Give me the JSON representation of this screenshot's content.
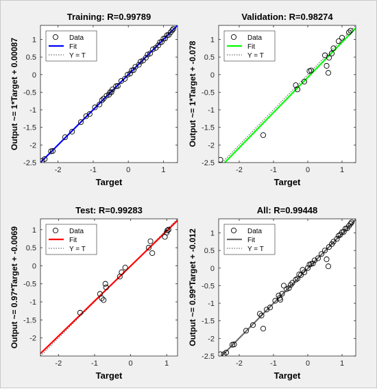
{
  "chart_data": [
    {
      "type": "scatter",
      "title": "Training: R=0.99789",
      "xlabel": "Target",
      "ylabel": "Output ~= 1*Target + 0.00087",
      "xlim": [
        -2.5,
        1.4
      ],
      "ylim": [
        -2.5,
        1.4
      ],
      "xticks": [
        -2,
        -1,
        0,
        1
      ],
      "yticks": [
        -2.5,
        -2,
        -1.5,
        -1,
        -0.5,
        0,
        0.5,
        1
      ],
      "ytick_labels": [
        "-2.5",
        "-2",
        "-1.5",
        "-1",
        "-0.5",
        "0",
        "0.5",
        "1"
      ],
      "xtick_labels": [
        "-2",
        "-1",
        "0",
        "1"
      ],
      "fit_color": "#0000ff",
      "fit": {
        "slope": 1.0,
        "intercept": 0.00087
      },
      "legend": [
        "Data",
        "Fit",
        "Y = T"
      ],
      "legend_position": "top-left",
      "series": [
        {
          "name": "Data",
          "x": [
            -2.45,
            -2.38,
            -2.2,
            -2.15,
            -1.8,
            -1.6,
            -1.35,
            -1.2,
            -1.1,
            -0.95,
            -0.82,
            -0.75,
            -0.7,
            -0.62,
            -0.55,
            -0.52,
            -0.48,
            -0.45,
            -0.35,
            -0.3,
            -0.2,
            -0.1,
            -0.02,
            0.05,
            0.1,
            0.15,
            0.2,
            0.3,
            0.35,
            0.42,
            0.5,
            0.55,
            0.62,
            0.7,
            0.78,
            0.85,
            0.9,
            0.95,
            1.0,
            1.05,
            1.1,
            1.15,
            1.2,
            1.25,
            1.28
          ],
          "y": [
            -2.45,
            -2.4,
            -2.18,
            -2.17,
            -1.78,
            -1.62,
            -1.35,
            -1.18,
            -1.12,
            -0.93,
            -0.85,
            -0.73,
            -0.68,
            -0.6,
            -0.57,
            -0.5,
            -0.5,
            -0.42,
            -0.33,
            -0.32,
            -0.18,
            -0.12,
            0.0,
            0.03,
            0.12,
            0.13,
            0.22,
            0.28,
            0.37,
            0.4,
            0.48,
            0.57,
            0.6,
            0.72,
            0.76,
            0.83,
            0.92,
            0.93,
            1.02,
            1.03,
            1.12,
            1.13,
            1.2,
            1.26,
            1.3
          ]
        }
      ]
    },
    {
      "type": "scatter",
      "title": "Validation: R=0.98274",
      "xlabel": "Target",
      "ylabel": "Output ~= 1*Target + -0.078",
      "xlim": [
        -2.6,
        1.4
      ],
      "ylim": [
        -2.5,
        1.4
      ],
      "xticks": [
        -2,
        -1,
        0,
        1
      ],
      "yticks": [
        -2.5,
        -2,
        -1.5,
        -1,
        -0.5,
        0,
        0.5,
        1
      ],
      "ytick_labels": [
        "-2.5",
        "-2",
        "-1.5",
        "-1",
        "-0.5",
        "0",
        "0.5",
        "1"
      ],
      "xtick_labels": [
        "-2",
        "-1",
        "0",
        "1"
      ],
      "fit_color": "#00ff00",
      "fit": {
        "slope": 1.0,
        "intercept": -0.078
      },
      "legend": [
        "Data",
        "Fit",
        "Y = T"
      ],
      "legend_position": "top-left",
      "series": [
        {
          "name": "Data",
          "x": [
            -2.55,
            -1.3,
            -0.35,
            -0.3,
            -0.1,
            0.05,
            0.1,
            0.5,
            0.55,
            0.6,
            0.62,
            0.7,
            0.75,
            0.9,
            1.0,
            1.2,
            1.25
          ],
          "y": [
            -2.42,
            -1.72,
            -0.3,
            -0.42,
            -0.2,
            0.1,
            0.12,
            0.55,
            0.25,
            0.05,
            0.48,
            0.6,
            0.75,
            0.95,
            1.05,
            1.2,
            1.25
          ]
        }
      ]
    },
    {
      "type": "scatter",
      "title": "Test: R=0.99283",
      "xlabel": "Target",
      "ylabel": "Output ~= 0.97*Target + -0.0069",
      "xlim": [
        -2.5,
        1.3
      ],
      "ylim": [
        -2.5,
        1.3
      ],
      "xticks": [
        -2,
        -1,
        0,
        1
      ],
      "yticks": [
        -2,
        -1.5,
        -1,
        -0.5,
        0,
        0.5,
        1
      ],
      "ytick_labels": [
        "-2",
        "-1.5",
        "-1",
        "-0.5",
        "0",
        "0.5",
        "1"
      ],
      "xtick_labels": [
        "-2",
        "-1",
        "0",
        "1"
      ],
      "fit_color": "#ff0000",
      "fit": {
        "slope": 0.97,
        "intercept": -0.0069
      },
      "legend": [
        "Data",
        "Fit",
        "Y = T"
      ],
      "legend_position": "top-left",
      "series": [
        {
          "name": "Data",
          "x": [
            -1.4,
            -0.85,
            -0.8,
            -0.75,
            -0.7,
            -0.68,
            -0.3,
            -0.25,
            -0.15,
            0.5,
            0.55,
            0.6,
            0.95,
            1.0,
            1.02,
            1.05
          ],
          "y": [
            -1.3,
            -0.78,
            -0.9,
            -0.95,
            -0.5,
            -0.6,
            -0.3,
            -0.18,
            -0.05,
            0.5,
            0.68,
            0.35,
            0.8,
            0.92,
            0.98,
            1.0
          ]
        }
      ]
    },
    {
      "type": "scatter",
      "title": "All: R=0.99448",
      "xlabel": "Target",
      "ylabel": "Output ~= 0.99*Target + -0.012",
      "xlim": [
        -2.6,
        1.4
      ],
      "ylim": [
        -2.5,
        1.4
      ],
      "xticks": [
        -2,
        -1,
        0,
        1
      ],
      "yticks": [
        -2.5,
        -2,
        -1.5,
        -1,
        -0.5,
        0,
        0.5,
        1
      ],
      "ytick_labels": [
        "-2.5",
        "-2",
        "-1.5",
        "-1",
        "-0.5",
        "0",
        "0.5",
        "1"
      ],
      "xtick_labels": [
        "-2",
        "-1",
        "0",
        "1"
      ],
      "fit_color": "#6f6f6f",
      "fit": {
        "slope": 0.99,
        "intercept": -0.012
      },
      "legend": [
        "Data",
        "Fit",
        "Y = T"
      ],
      "legend_position": "top-left",
      "series": [
        {
          "name": "Data",
          "x": [
            -2.55,
            -2.45,
            -2.38,
            -2.2,
            -2.15,
            -1.8,
            -1.6,
            -1.4,
            -1.35,
            -1.3,
            -1.2,
            -1.1,
            -0.95,
            -0.85,
            -0.82,
            -0.8,
            -0.75,
            -0.7,
            -0.62,
            -0.55,
            -0.5,
            -0.45,
            -0.35,
            -0.3,
            -0.25,
            -0.2,
            -0.15,
            -0.1,
            0.0,
            0.05,
            0.1,
            0.15,
            0.2,
            0.3,
            0.4,
            0.5,
            0.55,
            0.6,
            0.62,
            0.7,
            0.75,
            0.85,
            0.9,
            0.95,
            1.0,
            1.05,
            1.1,
            1.15,
            1.2,
            1.25,
            1.28
          ],
          "y": [
            -2.45,
            -2.45,
            -2.4,
            -2.18,
            -2.17,
            -1.78,
            -1.62,
            -1.3,
            -1.35,
            -1.72,
            -1.18,
            -1.12,
            -0.93,
            -0.78,
            -0.85,
            -0.9,
            -0.73,
            -0.5,
            -0.6,
            -0.57,
            -0.48,
            -0.42,
            -0.33,
            -0.3,
            -0.18,
            -0.2,
            -0.05,
            -0.12,
            0.0,
            0.1,
            0.12,
            0.13,
            0.22,
            0.28,
            0.4,
            0.5,
            0.25,
            0.05,
            0.6,
            0.68,
            0.75,
            0.83,
            0.92,
            0.95,
            1.02,
            1.03,
            1.12,
            1.13,
            1.2,
            1.26,
            1.3
          ]
        }
      ]
    }
  ]
}
